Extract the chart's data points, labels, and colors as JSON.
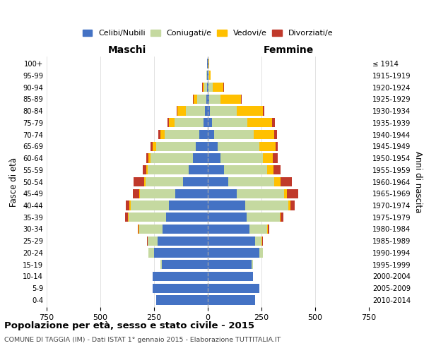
{
  "age_groups": [
    "0-4",
    "5-9",
    "10-14",
    "15-19",
    "20-24",
    "25-29",
    "30-34",
    "35-39",
    "40-44",
    "45-49",
    "50-54",
    "55-59",
    "60-64",
    "65-69",
    "70-74",
    "75-79",
    "80-84",
    "85-89",
    "90-94",
    "95-99",
    "100+"
  ],
  "birth_years": [
    "2010-2014",
    "2005-2009",
    "2000-2004",
    "1995-1999",
    "1990-1994",
    "1985-1989",
    "1980-1984",
    "1975-1979",
    "1970-1974",
    "1965-1969",
    "1960-1964",
    "1955-1959",
    "1950-1954",
    "1945-1949",
    "1940-1944",
    "1935-1939",
    "1930-1934",
    "1925-1929",
    "1920-1924",
    "1915-1919",
    "≤ 1914"
  ],
  "male": {
    "celibe": [
      240,
      255,
      255,
      215,
      250,
      235,
      210,
      195,
      180,
      150,
      115,
      90,
      70,
      55,
      40,
      20,
      12,
      8,
      4,
      2,
      2
    ],
    "coniugato": [
      0,
      1,
      2,
      5,
      25,
      45,
      110,
      175,
      180,
      165,
      175,
      190,
      195,
      185,
      160,
      135,
      90,
      40,
      12,
      3,
      1
    ],
    "vedovo": [
      0,
      0,
      0,
      0,
      0,
      1,
      2,
      3,
      5,
      5,
      5,
      5,
      10,
      15,
      20,
      25,
      38,
      18,
      8,
      1,
      0
    ],
    "divorziato": [
      0,
      0,
      0,
      1,
      2,
      3,
      5,
      12,
      18,
      28,
      50,
      18,
      12,
      10,
      10,
      8,
      5,
      3,
      2,
      0,
      0
    ]
  },
  "female": {
    "nubile": [
      220,
      240,
      210,
      205,
      240,
      220,
      195,
      180,
      175,
      135,
      95,
      75,
      60,
      45,
      30,
      20,
      10,
      8,
      4,
      3,
      2
    ],
    "coniugata": [
      0,
      1,
      2,
      5,
      15,
      30,
      80,
      155,
      200,
      220,
      215,
      200,
      195,
      195,
      185,
      165,
      125,
      50,
      18,
      2,
      0
    ],
    "vedova": [
      0,
      0,
      0,
      0,
      1,
      2,
      5,
      5,
      10,
      15,
      28,
      32,
      48,
      75,
      95,
      115,
      120,
      95,
      52,
      8,
      3
    ],
    "divorziata": [
      0,
      0,
      0,
      1,
      2,
      3,
      5,
      12,
      18,
      50,
      55,
      32,
      22,
      12,
      12,
      12,
      8,
      4,
      2,
      0,
      0
    ]
  },
  "colors": {
    "celibe": "#4472C4",
    "coniugato": "#c5d9a0",
    "vedovo": "#ffc000",
    "divorziato": "#c0392b"
  },
  "legend_labels": [
    "Celibi/Nubili",
    "Coniugati/e",
    "Vedovi/e",
    "Divorziati/e"
  ],
  "title_bold": "Popolazione per età, sesso e stato civile - 2015",
  "subtitle": "COMUNE DI TAGGIA (IM) - Dati ISTAT 1° gennaio 2015 - Elaborazione TUTTITALIA.IT",
  "xlabel_left": "Maschi",
  "xlabel_right": "Femmine",
  "ylabel_left": "Fasce di età",
  "ylabel_right": "Anni di nascita",
  "xlim": 750,
  "bg_color": "#ffffff",
  "grid_color": "#cccccc"
}
